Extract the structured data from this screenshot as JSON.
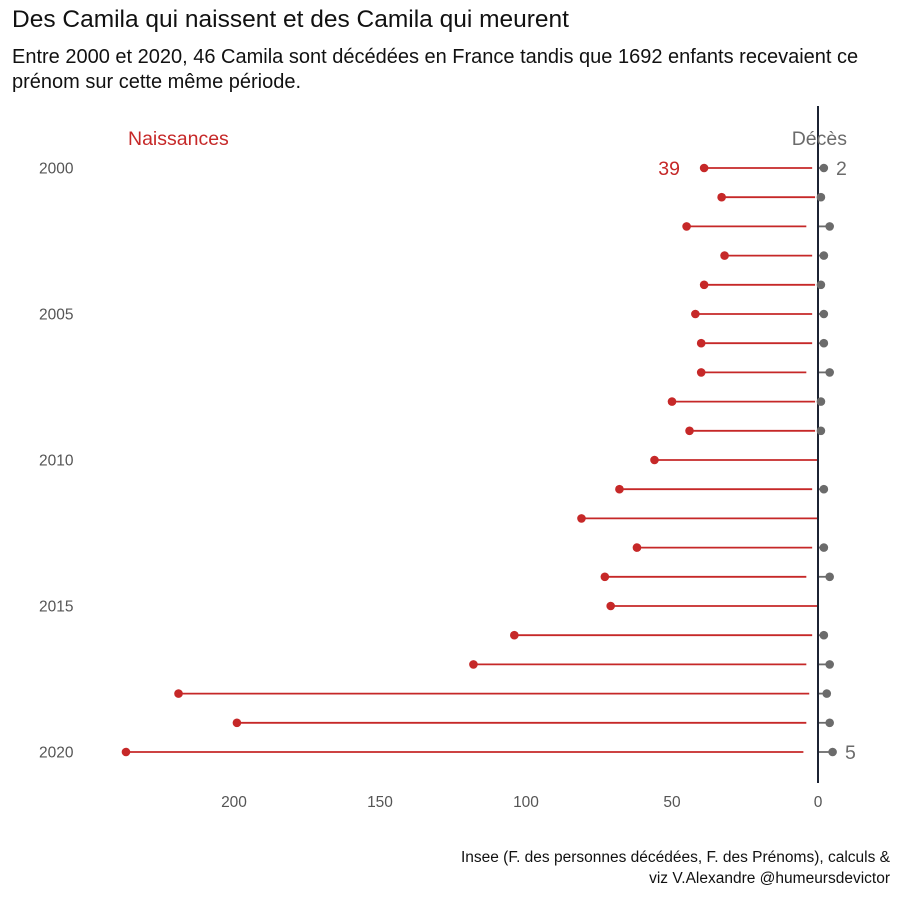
{
  "title": "Des Camila qui naissent et des Camila qui meurent",
  "subtitle": "Entre 2000 et 2020, 46 Camila sont décédées en France tandis que 1692 enfants recevaient ce prénom sur cette même période.",
  "caption": [
    "Insee (F. des personnes décédées, F. des Prénoms), calculs &",
    "viz V.Alexandre @humeursdevictor"
  ],
  "colors": {
    "naissances": "#c62828",
    "deces": "#6b6b6b",
    "axis": "#1c2333",
    "tick": "#555555"
  },
  "chart_data": {
    "type": "lollipop",
    "years": [
      2000,
      2001,
      2002,
      2003,
      2004,
      2005,
      2006,
      2007,
      2008,
      2009,
      2010,
      2011,
      2012,
      2013,
      2014,
      2015,
      2016,
      2017,
      2018,
      2019,
      2020
    ],
    "naissances": [
      39,
      33,
      45,
      32,
      39,
      42,
      40,
      40,
      50,
      44,
      56,
      68,
      81,
      62,
      73,
      71,
      104,
      118,
      219,
      199,
      237
    ],
    "deces": [
      2,
      1,
      4,
      2,
      1,
      2,
      2,
      4,
      1,
      1,
      0,
      2,
      0,
      2,
      4,
      0,
      2,
      4,
      3,
      4,
      5
    ],
    "xlim": [
      240,
      0
    ],
    "xticks": [
      200,
      150,
      100,
      50,
      0
    ],
    "yticks": [
      2000,
      2005,
      2010,
      2015,
      2020
    ],
    "legend": {
      "naissances": "Naissances",
      "deces": "Décès"
    },
    "annotations": {
      "first_naissance": "39",
      "first_deces": "2",
      "last_deces": "5"
    }
  }
}
